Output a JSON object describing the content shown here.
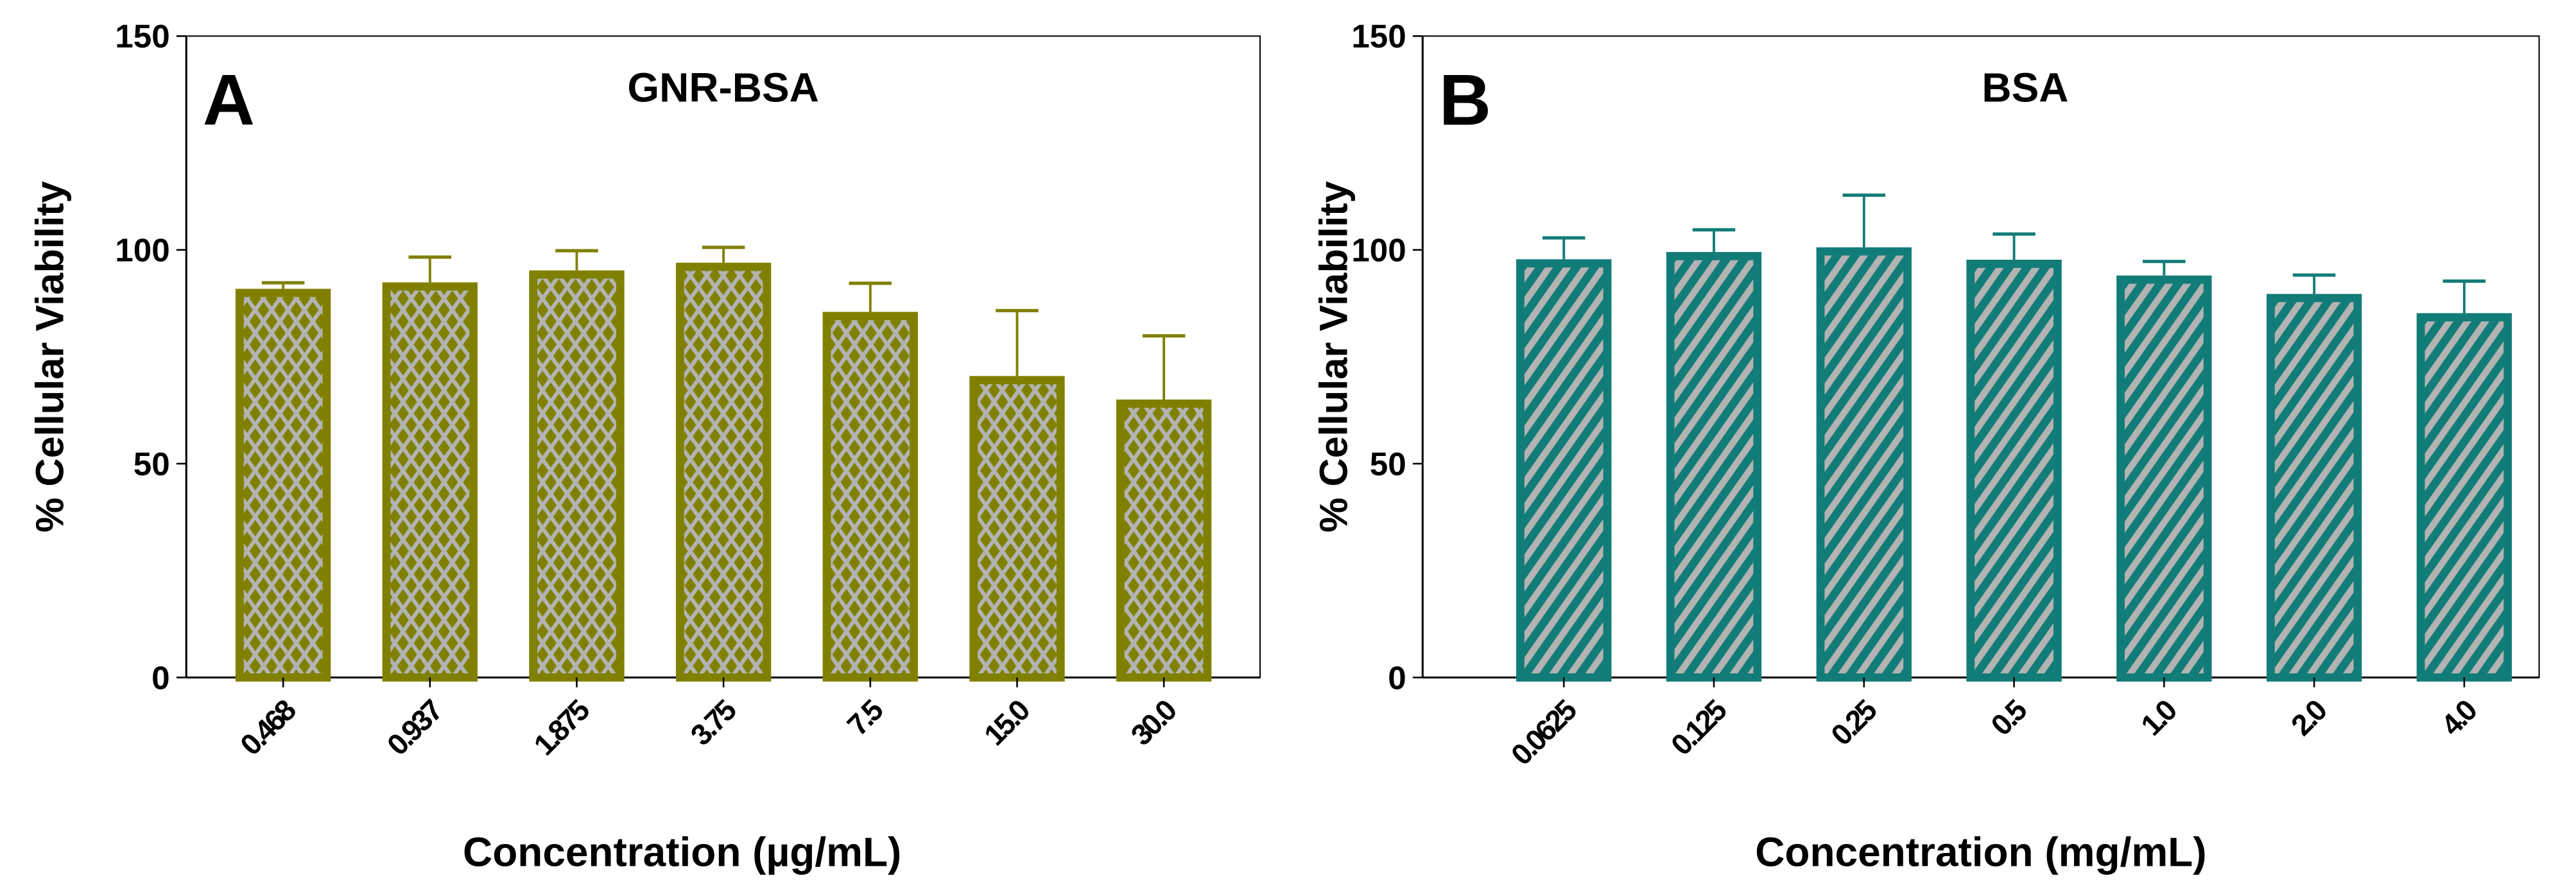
{
  "chart_data": [
    {
      "type": "bar",
      "panel_label": "A",
      "title": "GNR-BSA",
      "xlabel": "Concentration (µg/mL)",
      "ylabel": "% Cellular Viability",
      "ylim": [
        0,
        150
      ],
      "yticks": [
        "0",
        "50",
        "100",
        "150"
      ],
      "categories": [
        "0.468",
        "0.937",
        "1.875",
        "3.75",
        "7.5",
        "15.0",
        "30.0"
      ],
      "values": [
        90.9,
        92.4,
        95.2,
        97.0,
        85.5,
        70.5,
        65.0
      ],
      "error_upper": [
        92.3,
        98.3,
        99.8,
        100.6,
        92.2,
        85.8,
        79.9
      ],
      "color": "#808000",
      "fill_color": "#b3b3b3",
      "pattern": "crosshatch"
    },
    {
      "type": "bar",
      "panel_label": "B",
      "title": "BSA",
      "xlabel": "Concentration (mg/mL)",
      "ylabel": "% Cellular Viability",
      "ylim": [
        0,
        150
      ],
      "yticks": [
        "0",
        "50",
        "100",
        "150"
      ],
      "categories": [
        "0.0625",
        "0.125",
        "0.25",
        "0.5",
        "1.0",
        "2.0",
        "4.0"
      ],
      "values": [
        97.8,
        99.5,
        100.6,
        97.7,
        94.0,
        89.7,
        85.2
      ],
      "error_upper": [
        102.8,
        104.7,
        112.8,
        103.7,
        97.3,
        94.1,
        92.7
      ],
      "color": "#127c78",
      "fill_color": "#b3b3b3",
      "pattern": "diagonal"
    }
  ]
}
